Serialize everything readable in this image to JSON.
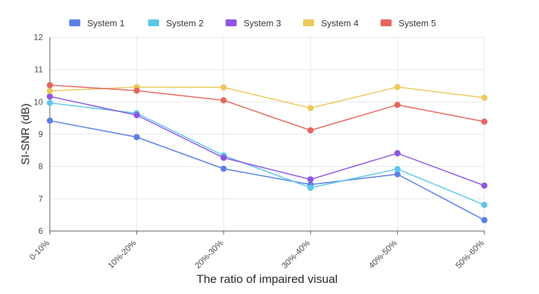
{
  "chart_data": {
    "type": "line",
    "xlabel": "The ratio of impaired visual",
    "ylabel": "SI-SNR (dB)",
    "categories": [
      "0-10%",
      "10%-20%",
      "20%-30%",
      "30%-40%",
      "40%-50%",
      "50%-60%"
    ],
    "ylim": [
      6,
      12
    ],
    "yticks": [
      6,
      7,
      8,
      9,
      10,
      11,
      12
    ],
    "grid": true,
    "legend_position": "top",
    "series": [
      {
        "name": "System 1",
        "color": "#5b7fe6",
        "values": [
          9.42,
          8.91,
          7.93,
          7.44,
          7.76,
          6.34
        ]
      },
      {
        "name": "System 2",
        "color": "#5bc8ea",
        "values": [
          9.97,
          9.65,
          8.34,
          7.34,
          7.92,
          6.81
        ]
      },
      {
        "name": "System 3",
        "color": "#8e55e0",
        "values": [
          10.17,
          9.59,
          8.27,
          7.6,
          8.41,
          7.41
        ]
      },
      {
        "name": "System 4",
        "color": "#ebc95a",
        "values": [
          10.34,
          10.46,
          10.45,
          9.81,
          10.46,
          10.13
        ]
      },
      {
        "name": "System 5",
        "color": "#e5665f",
        "values": [
          10.52,
          10.35,
          10.05,
          9.12,
          9.91,
          9.39
        ]
      }
    ]
  }
}
